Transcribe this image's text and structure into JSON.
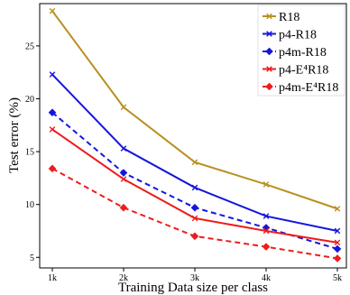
{
  "chart_data": {
    "type": "line",
    "xlabel": "Training Data size per class",
    "ylabel": "Test error (%)",
    "x": [
      "1k",
      "2k",
      "3k",
      "4k",
      "5k"
    ],
    "yticks": [
      5,
      10,
      15,
      20,
      25
    ],
    "ylim": [
      4,
      29
    ],
    "grid": false,
    "legend_position": "top-right",
    "series": [
      {
        "name": "R18",
        "color": "#b8901e",
        "dashed": false,
        "marker": "x",
        "values": [
          28.3,
          19.2,
          14.0,
          11.9,
          9.6
        ]
      },
      {
        "name": "p4-R18",
        "color": "#1515dd",
        "dashed": false,
        "marker": "x",
        "values": [
          22.3,
          15.3,
          11.6,
          8.9,
          7.5
        ]
      },
      {
        "name": "p4m-R18",
        "color": "#1515dd",
        "dashed": true,
        "marker": "diamond",
        "values": [
          18.7,
          13.0,
          9.7,
          7.8,
          5.8
        ]
      },
      {
        "name": "p4-E⁴R18",
        "color": "#ee1c1c",
        "dashed": false,
        "marker": "x",
        "values": [
          17.1,
          12.4,
          8.7,
          7.5,
          6.4
        ]
      },
      {
        "name": "p4m-E⁴R18",
        "color": "#ee1c1c",
        "dashed": true,
        "marker": "diamond",
        "values": [
          13.4,
          9.7,
          7.0,
          6.0,
          4.9
        ]
      }
    ]
  }
}
